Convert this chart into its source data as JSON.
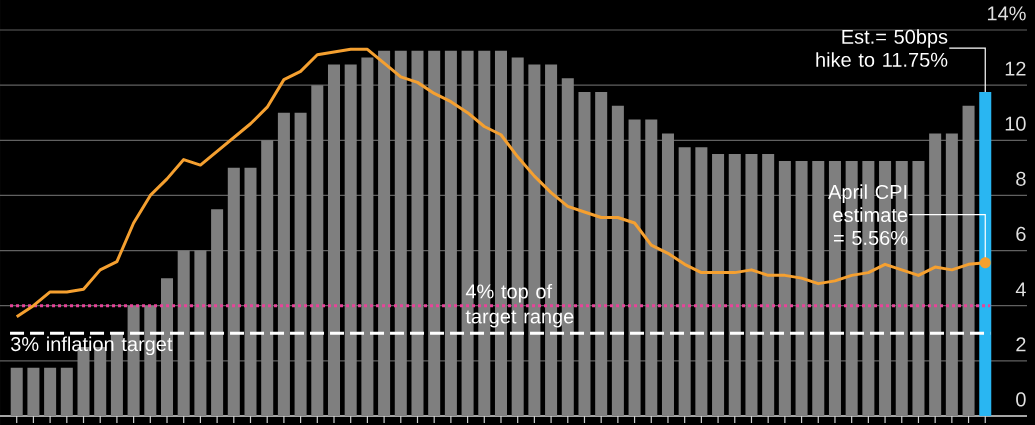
{
  "chart_data": {
    "type": "bar",
    "categories": [
      null,
      null,
      null,
      null,
      null,
      null,
      null,
      null,
      null,
      null,
      null,
      null,
      null,
      null,
      null,
      null,
      null,
      null,
      null,
      null,
      null,
      null,
      null,
      null,
      null,
      null,
      null,
      null,
      null,
      null,
      null,
      null,
      null,
      null,
      null,
      null,
      null,
      null,
      null,
      null,
      null,
      null,
      null,
      null,
      null,
      null,
      null,
      null,
      null,
      null,
      null,
      null,
      null,
      null,
      null,
      null,
      null,
      null,
      null
    ],
    "ylim": [
      0,
      14
    ],
    "yticks": [
      0,
      2,
      4,
      6,
      8,
      10,
      12,
      {
        "value": 14,
        "label": "14%"
      }
    ],
    "grid": "y",
    "series": [
      {
        "colors": [
          "#7f7f7f",
          "#7f7f7f",
          "#7f7f7f",
          "#7f7f7f",
          "#7f7f7f",
          "#7f7f7f",
          "#7f7f7f",
          "#7f7f7f",
          "#7f7f7f",
          "#7f7f7f",
          "#7f7f7f",
          "#7f7f7f",
          "#7f7f7f",
          "#7f7f7f",
          "#7f7f7f",
          "#7f7f7f",
          "#7f7f7f",
          "#7f7f7f",
          "#7f7f7f",
          "#7f7f7f",
          "#7f7f7f",
          "#7f7f7f",
          "#7f7f7f",
          "#7f7f7f",
          "#7f7f7f",
          "#7f7f7f",
          "#7f7f7f",
          "#7f7f7f",
          "#7f7f7f",
          "#7f7f7f",
          "#7f7f7f",
          "#7f7f7f",
          "#7f7f7f",
          "#7f7f7f",
          "#7f7f7f",
          "#7f7f7f",
          "#7f7f7f",
          "#7f7f7f",
          "#7f7f7f",
          "#7f7f7f",
          "#7f7f7f",
          "#7f7f7f",
          "#7f7f7f",
          "#7f7f7f",
          "#7f7f7f",
          "#7f7f7f",
          "#7f7f7f",
          "#7f7f7f",
          "#7f7f7f",
          "#7f7f7f",
          "#7f7f7f",
          "#7f7f7f",
          "#7f7f7f",
          "#7f7f7f",
          "#7f7f7f",
          "#7f7f7f",
          "#7f7f7f",
          "#7f7f7f",
          "#29b6f2"
        ],
        "values": [
          1.75,
          1.75,
          1.75,
          1.75,
          2.5,
          2.5,
          3.0,
          4.0,
          4.0,
          5.0,
          6.0,
          6.0,
          7.5,
          9.0,
          9.0,
          10.0,
          11.0,
          11.0,
          12.0,
          12.75,
          12.75,
          13.0,
          13.25,
          13.25,
          13.25,
          13.25,
          13.25,
          13.25,
          13.25,
          13.25,
          13.0,
          12.75,
          12.75,
          12.25,
          11.75,
          11.75,
          11.25,
          10.75,
          10.75,
          10.25,
          9.75,
          9.75,
          9.5,
          9.5,
          9.5,
          9.5,
          9.25,
          9.25,
          9.25,
          9.25,
          9.25,
          9.25,
          9.25,
          9.25,
          9.25,
          10.25,
          10.25,
          11.25,
          11.75
        ]
      },
      {
        "type": "line",
        "color": "#f5a030",
        "values": [
          3.6,
          4.0,
          4.5,
          4.5,
          4.6,
          5.3,
          5.6,
          7.0,
          8.0,
          8.6,
          9.3,
          9.1,
          9.6,
          10.1,
          10.6,
          11.2,
          12.2,
          12.5,
          13.1,
          13.2,
          13.3,
          13.3,
          12.8,
          12.3,
          12.1,
          11.7,
          11.4,
          11.0,
          10.5,
          10.2,
          9.4,
          8.7,
          8.1,
          7.6,
          7.4,
          7.2,
          7.2,
          7.0,
          6.2,
          5.9,
          5.5,
          5.2,
          5.2,
          5.2,
          5.3,
          5.1,
          5.1,
          5.0,
          4.8,
          4.9,
          5.1,
          5.2,
          5.5,
          5.3,
          5.1,
          5.4,
          5.3,
          5.5,
          5.56
        ]
      }
    ],
    "ref_lines": [
      {
        "axis": "y",
        "value": 4,
        "label": "4% top of target range",
        "color": "#e8449a",
        "line_style": "dotted"
      },
      {
        "axis": "y",
        "value": 3,
        "label": "3% inflation target",
        "color": "#ffffff",
        "line_style": "dashed"
      }
    ],
    "annotations": [
      "Est.= 50bps hike to 11.75%",
      "April CPI estimate = 5.56%"
    ]
  }
}
